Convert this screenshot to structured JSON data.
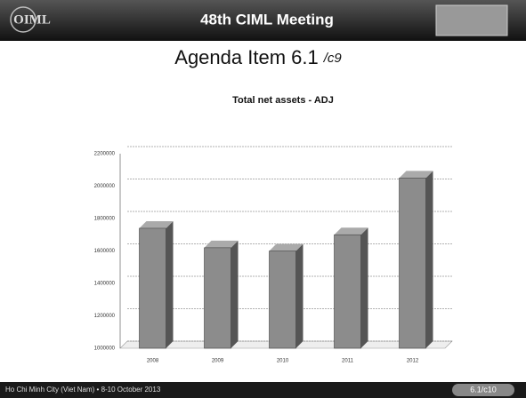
{
  "header": {
    "logo": "OIML",
    "title": "48th CIML Meeting"
  },
  "slide": {
    "heading": "Agenda Item 6.1",
    "heading_suffix": "/c9"
  },
  "footer": {
    "location": "Ho Chi Minh City (Viet Nam)  •  8-10 October 2013",
    "page": "6.1/c10"
  },
  "chart_data": {
    "type": "bar",
    "title": "Total net assets - ADJ",
    "categories": [
      "2008",
      "2009",
      "2010",
      "2011",
      "2012"
    ],
    "values": [
      1740000,
      1620000,
      1600000,
      1700000,
      2050000
    ],
    "color": "#8c8c8c",
    "ylim": [
      1000000,
      2200000
    ],
    "yticks": [
      1000000,
      1200000,
      1400000,
      1600000,
      1800000,
      2000000,
      2200000
    ],
    "grid": true
  }
}
